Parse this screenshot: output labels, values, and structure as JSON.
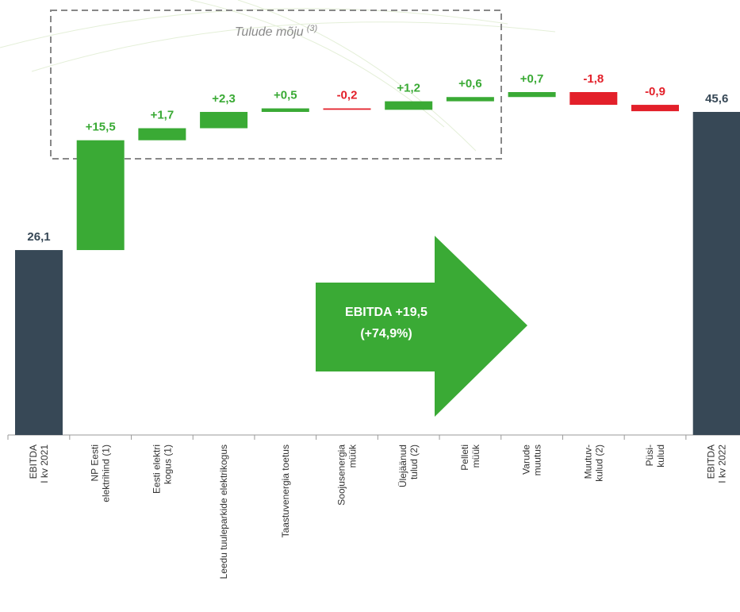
{
  "chart_data": {
    "type": "waterfall",
    "categories": [
      [
        "EBITDA",
        "I kv 2021"
      ],
      [
        "NP Eesti",
        "elektrihind (1)"
      ],
      [
        "Eesti elektri",
        "kogus (1)"
      ],
      [
        "Leedu tuuleparkide elektrikogus"
      ],
      [
        "Taastuvenergia toetus"
      ],
      [
        "Soojusenergia",
        "müük"
      ],
      [
        "Ülejäänud",
        "tulud (2)"
      ],
      [
        "Pelleti",
        "müük"
      ],
      [
        "Varude",
        "muutus"
      ],
      [
        "Muutuv-",
        "kulud (2)"
      ],
      [
        "Püsi-",
        "kulud"
      ],
      [
        "EBITDA",
        "I kv 2022"
      ]
    ],
    "values": [
      26.1,
      15.5,
      1.7,
      2.3,
      0.5,
      -0.2,
      1.2,
      0.6,
      0.7,
      -1.8,
      -0.9,
      45.6
    ],
    "value_labels": [
      "26,1",
      "+15,5",
      "+1,7",
      "+2,3",
      "+0,5",
      "-0,2",
      "+1,2",
      "+0,6",
      "+0,7",
      "-1,8",
      "-0,9",
      "45,6"
    ],
    "colors": {
      "total": "#374856",
      "increase": "#3aaa35",
      "decrease": "#e3202a"
    },
    "annotation": "Tulude mõju",
    "annotation_note": "(3)",
    "arrow_label": [
      "EBITDA +19,5",
      "(+74,9%)"
    ]
  }
}
